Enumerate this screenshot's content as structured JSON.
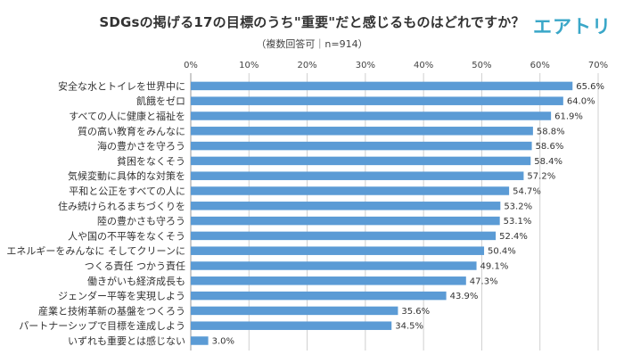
{
  "header": {
    "logo": "エアトリ"
  },
  "colors": {
    "bar": "#5b9bd5",
    "logo": "#3aa7c8"
  },
  "chart_data": {
    "type": "bar",
    "orientation": "horizontal",
    "title": "SDGsの掲げる17の目標のうち\"重要\"だと感じるものはどれですか？",
    "subtitle": "（複数回答可｜n=914）",
    "xlim": [
      0,
      70
    ],
    "tick_values": [
      0,
      10,
      20,
      30,
      40,
      50,
      60,
      70
    ],
    "tick_labels": [
      "0%",
      "10%",
      "20%",
      "30%",
      "40%",
      "50%",
      "60%",
      "70%"
    ],
    "categories": [
      "安全な水とトイレを世界中に",
      "飢餓をゼロ",
      "すべての人に健康と福祉を",
      "質の高い教育をみんなに",
      "海の豊かさを守ろう",
      "貧困をなくそう",
      "気候変動に具体的な対策を",
      "平和と公正をすべての人に",
      "住み続けられるまちづくりを",
      "陸の豊かさも守ろう",
      "人や国の不平等をなくそう",
      "エネルギーをみんなに そしてクリーンに",
      "つくる責任 つかう責任",
      "働きがいも経済成長も",
      "ジェンダー平等を実現しよう",
      "産業と技術革新の基盤をつくろう",
      "パートナーシップで目標を達成しよう",
      "いずれも重要とは感じない"
    ],
    "values": [
      65.6,
      64.0,
      61.9,
      58.8,
      58.6,
      58.4,
      57.2,
      54.7,
      53.2,
      53.1,
      52.4,
      50.4,
      49.1,
      47.3,
      43.9,
      35.6,
      34.5,
      3.0
    ],
    "value_labels": [
      "65.6%",
      "64.0%",
      "61.9%",
      "58.8%",
      "58.6%",
      "58.4%",
      "57.2%",
      "54.7%",
      "53.2%",
      "53.1%",
      "52.4%",
      "50.4%",
      "49.1%",
      "47.3%",
      "43.9%",
      "35.6%",
      "34.5%",
      "3.0%"
    ],
    "xlabel": "",
    "ylabel": "",
    "grid": true
  }
}
